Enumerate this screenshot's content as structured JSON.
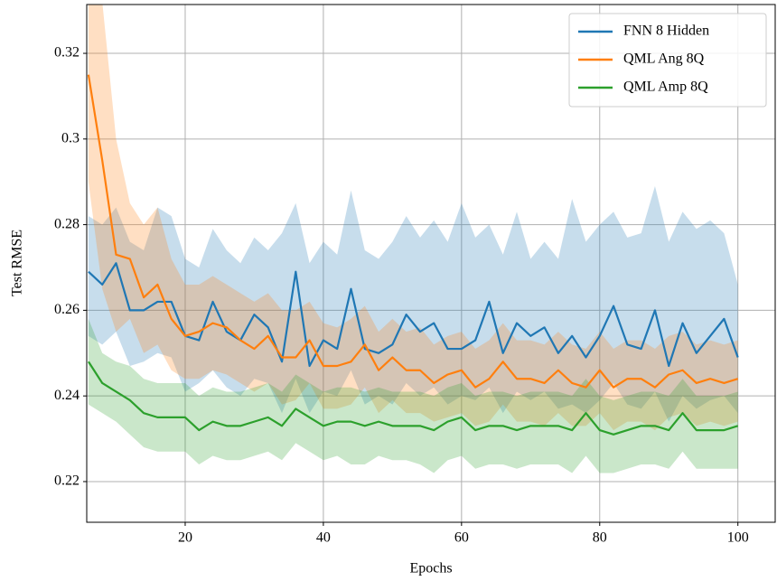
{
  "chart_data": {
    "type": "line",
    "xlabel": "Epochs",
    "ylabel": "Test RMSE",
    "x": [
      6,
      8,
      10,
      12,
      14,
      16,
      18,
      20,
      22,
      24,
      26,
      28,
      30,
      32,
      34,
      36,
      38,
      40,
      42,
      44,
      46,
      48,
      50,
      52,
      54,
      56,
      58,
      60,
      62,
      64,
      66,
      68,
      70,
      72,
      74,
      76,
      78,
      80,
      82,
      84,
      86,
      88,
      90,
      92,
      94,
      96,
      98,
      100
    ],
    "series": [
      {
        "name": "FNN 8 Hidden",
        "color": "#1f77b4",
        "values": [
          0.269,
          0.266,
          0.271,
          0.26,
          0.26,
          0.262,
          0.262,
          0.254,
          0.253,
          0.262,
          0.255,
          0.253,
          0.259,
          0.256,
          0.248,
          0.269,
          0.247,
          0.253,
          0.251,
          0.265,
          0.251,
          0.25,
          0.252,
          0.259,
          0.255,
          0.257,
          0.251,
          0.251,
          0.253,
          0.262,
          0.25,
          0.257,
          0.254,
          0.256,
          0.25,
          0.254,
          0.249,
          0.254,
          0.261,
          0.252,
          0.251,
          0.26,
          0.247,
          0.257,
          0.25,
          0.254,
          0.258,
          0.249
        ],
        "upper": [
          0.282,
          0.28,
          0.284,
          0.276,
          0.274,
          0.284,
          0.282,
          0.272,
          0.27,
          0.279,
          0.274,
          0.271,
          0.277,
          0.274,
          0.278,
          0.285,
          0.271,
          0.276,
          0.273,
          0.288,
          0.274,
          0.272,
          0.276,
          0.282,
          0.277,
          0.281,
          0.276,
          0.285,
          0.277,
          0.28,
          0.273,
          0.283,
          0.272,
          0.276,
          0.272,
          0.286,
          0.276,
          0.28,
          0.283,
          0.277,
          0.278,
          0.289,
          0.276,
          0.283,
          0.279,
          0.281,
          0.278,
          0.266
        ],
        "lower": [
          0.254,
          0.252,
          0.255,
          0.247,
          0.248,
          0.25,
          0.249,
          0.241,
          0.243,
          0.246,
          0.242,
          0.24,
          0.244,
          0.243,
          0.236,
          0.244,
          0.236,
          0.241,
          0.24,
          0.246,
          0.238,
          0.24,
          0.238,
          0.243,
          0.24,
          0.242,
          0.238,
          0.24,
          0.239,
          0.242,
          0.236,
          0.241,
          0.239,
          0.241,
          0.237,
          0.238,
          0.236,
          0.239,
          0.243,
          0.238,
          0.237,
          0.241,
          0.234,
          0.24,
          0.237,
          0.239,
          0.24,
          0.236
        ]
      },
      {
        "name": "QML Ang 8Q",
        "color": "#ff7f0e",
        "values": [
          0.315,
          0.295,
          0.273,
          0.272,
          0.263,
          0.266,
          0.258,
          0.254,
          0.255,
          0.257,
          0.256,
          0.253,
          0.251,
          0.254,
          0.249,
          0.249,
          0.253,
          0.247,
          0.247,
          0.248,
          0.252,
          0.246,
          0.249,
          0.246,
          0.246,
          0.243,
          0.245,
          0.246,
          0.242,
          0.244,
          0.248,
          0.244,
          0.244,
          0.243,
          0.246,
          0.243,
          0.242,
          0.246,
          0.242,
          0.244,
          0.244,
          0.242,
          0.245,
          0.246,
          0.243,
          0.244,
          0.243,
          0.244
        ],
        "upper": [
          0.335,
          0.332,
          0.3,
          0.285,
          0.28,
          0.284,
          0.272,
          0.266,
          0.266,
          0.268,
          0.266,
          0.264,
          0.262,
          0.264,
          0.26,
          0.26,
          0.262,
          0.257,
          0.256,
          0.258,
          0.261,
          0.255,
          0.258,
          0.255,
          0.256,
          0.252,
          0.254,
          0.255,
          0.251,
          0.253,
          0.257,
          0.253,
          0.253,
          0.252,
          0.255,
          0.252,
          0.251,
          0.255,
          0.251,
          0.253,
          0.253,
          0.251,
          0.254,
          0.255,
          0.252,
          0.253,
          0.252,
          0.253
        ],
        "lower": [
          0.29,
          0.265,
          0.255,
          0.258,
          0.25,
          0.252,
          0.246,
          0.244,
          0.244,
          0.246,
          0.245,
          0.243,
          0.241,
          0.243,
          0.238,
          0.239,
          0.243,
          0.237,
          0.237,
          0.238,
          0.242,
          0.236,
          0.239,
          0.236,
          0.236,
          0.234,
          0.235,
          0.236,
          0.233,
          0.234,
          0.238,
          0.234,
          0.234,
          0.233,
          0.236,
          0.233,
          0.233,
          0.236,
          0.232,
          0.234,
          0.234,
          0.232,
          0.235,
          0.236,
          0.233,
          0.234,
          0.233,
          0.234
        ]
      },
      {
        "name": "QML Amp 8Q",
        "color": "#2ca02c",
        "values": [
          0.248,
          0.243,
          0.241,
          0.239,
          0.236,
          0.235,
          0.235,
          0.235,
          0.232,
          0.234,
          0.233,
          0.233,
          0.234,
          0.235,
          0.233,
          0.237,
          0.235,
          0.233,
          0.234,
          0.234,
          0.233,
          0.234,
          0.233,
          0.233,
          0.233,
          0.232,
          0.234,
          0.235,
          0.232,
          0.233,
          0.233,
          0.232,
          0.233,
          0.233,
          0.233,
          0.232,
          0.236,
          0.232,
          0.231,
          0.232,
          0.233,
          0.233,
          0.232,
          0.236,
          0.232,
          0.232,
          0.232,
          0.233
        ],
        "upper": [
          0.258,
          0.25,
          0.248,
          0.247,
          0.244,
          0.243,
          0.243,
          0.243,
          0.24,
          0.242,
          0.241,
          0.241,
          0.242,
          0.243,
          0.241,
          0.245,
          0.243,
          0.241,
          0.242,
          0.242,
          0.241,
          0.242,
          0.241,
          0.241,
          0.241,
          0.24,
          0.242,
          0.243,
          0.24,
          0.241,
          0.241,
          0.24,
          0.241,
          0.241,
          0.241,
          0.24,
          0.244,
          0.24,
          0.239,
          0.24,
          0.241,
          0.241,
          0.24,
          0.244,
          0.24,
          0.24,
          0.24,
          0.241
        ],
        "lower": [
          0.238,
          0.236,
          0.234,
          0.231,
          0.228,
          0.227,
          0.227,
          0.227,
          0.224,
          0.226,
          0.225,
          0.225,
          0.226,
          0.227,
          0.225,
          0.229,
          0.227,
          0.225,
          0.226,
          0.224,
          0.224,
          0.226,
          0.225,
          0.225,
          0.224,
          0.222,
          0.225,
          0.226,
          0.223,
          0.224,
          0.224,
          0.223,
          0.224,
          0.224,
          0.224,
          0.222,
          0.226,
          0.222,
          0.222,
          0.223,
          0.224,
          0.224,
          0.223,
          0.227,
          0.223,
          0.223,
          0.223,
          0.223
        ]
      }
    ],
    "xlim": [
      5.75,
      105.4
    ],
    "xticks": [
      20,
      40,
      60,
      80,
      100
    ],
    "ylim": [
      0.2105,
      0.3314
    ],
    "yticks": [
      0.22,
      0.24,
      0.26,
      0.28,
      0.3,
      0.32
    ],
    "grid": true,
    "legend": "upper-right",
    "band_opacity": 0.25
  }
}
